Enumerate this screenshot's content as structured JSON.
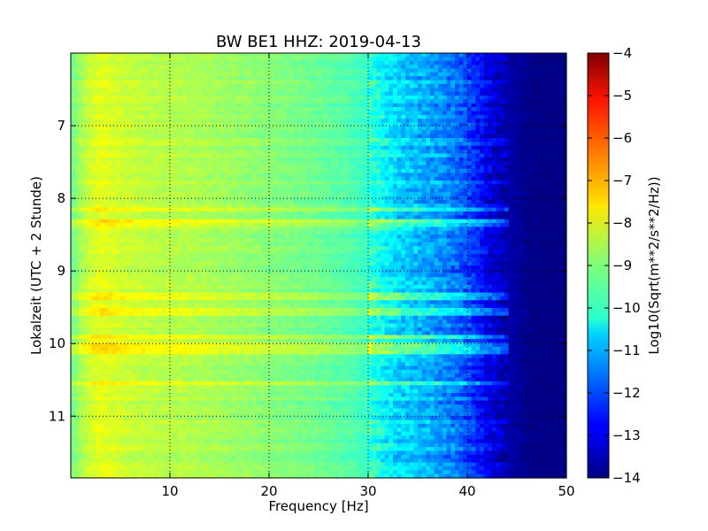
{
  "chart_data": {
    "type": "heatmap",
    "title": "BW BE1 HHZ: 2019-04-13",
    "xlabel": "Frequency [Hz]",
    "ylabel": "Lokalzeit (UTC + 2 Stunde)",
    "xlim": [
      0,
      50
    ],
    "ylim": [
      11.85,
      6.0
    ],
    "y_inverted": true,
    "x_ticks": [
      10,
      20,
      30,
      40,
      50
    ],
    "x_tick_labels": [
      "10",
      "20",
      "30",
      "40",
      "50"
    ],
    "y_ticks": [
      7,
      8,
      9,
      10,
      11
    ],
    "y_tick_labels": [
      "7",
      "8",
      "9",
      "10",
      "11"
    ],
    "grid": true,
    "colormap": "jet",
    "colorbar": {
      "label": "Log10(Sqrt(m**2/s**2/Hz))",
      "range": [
        -14,
        -4
      ],
      "ticks": [
        -4,
        -5,
        -6,
        -7,
        -8,
        -9,
        -10,
        -11,
        -12,
        -13,
        -14
      ],
      "tick_labels": [
        "−4",
        "−5",
        "−6",
        "−7",
        "−8",
        "−9",
        "−10",
        "−11",
        "−12",
        "−13",
        "−14"
      ]
    },
    "spectrum_profile": {
      "frequency_hz": [
        0,
        1,
        2,
        3,
        5,
        8,
        12,
        16,
        20,
        24,
        28,
        30,
        31,
        32,
        33,
        35,
        37,
        39,
        40,
        41,
        42,
        43,
        44,
        45,
        46,
        48,
        50
      ],
      "log10_amplitude": [
        -9.2,
        -8.6,
        -8.2,
        -8.0,
        -8.2,
        -8.4,
        -8.5,
        -8.7,
        -8.9,
        -9.1,
        -9.4,
        -9.7,
        -10.0,
        -10.3,
        -10.6,
        -10.9,
        -11.2,
        -11.6,
        -12.0,
        -12.4,
        -12.9,
        -13.2,
        -13.5,
        -13.7,
        -13.9,
        -14.0,
        -14.0
      ]
    },
    "high_energy_bands_hours": [
      8.15,
      8.35,
      9.35,
      9.55,
      9.9,
      10.05,
      10.13,
      10.55
    ]
  }
}
